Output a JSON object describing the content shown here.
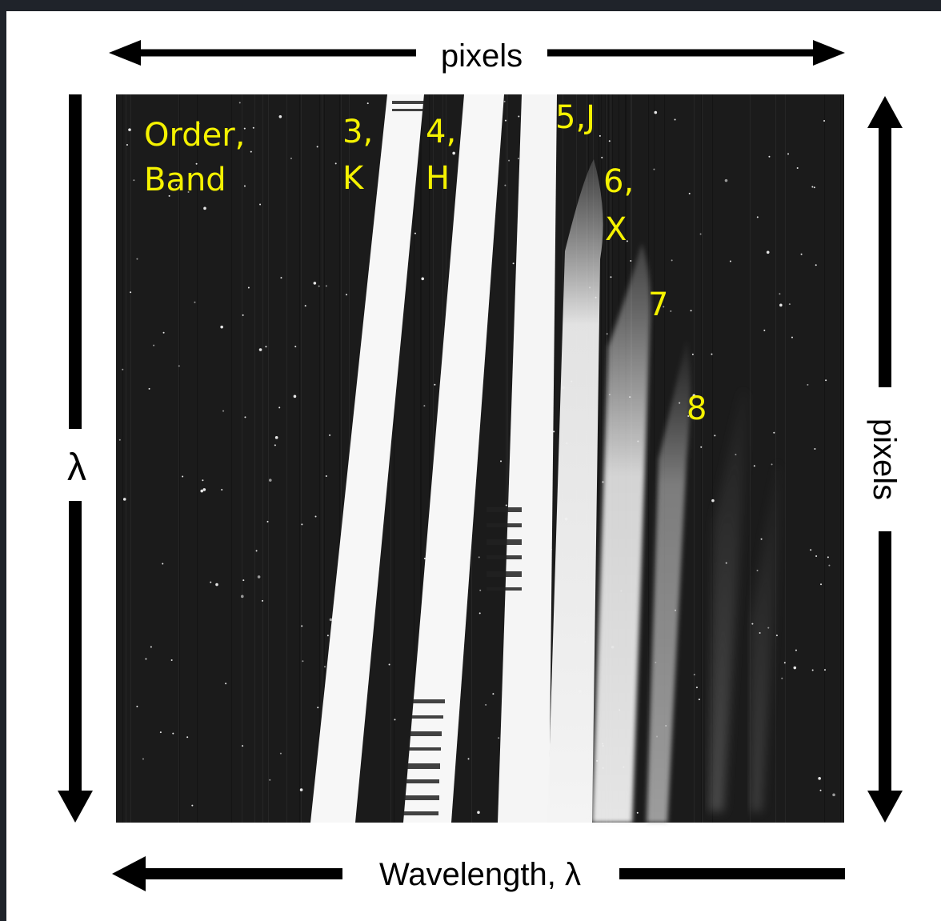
{
  "top_label": "pixels",
  "right_label": "pixels",
  "left_label": "λ",
  "bottom_label": "Wavelength, λ",
  "legend": {
    "line1": "Order,",
    "line2": "Band"
  },
  "orders": [
    {
      "line1": "3,",
      "line2": "K"
    },
    {
      "line1": "4,",
      "line2": "H"
    },
    {
      "line1": "5,J",
      "line2": ""
    },
    {
      "line1": "6,",
      "line2": "X"
    },
    {
      "line1": "7",
      "line2": ""
    },
    {
      "line1": "8",
      "line2": ""
    }
  ],
  "colors": {
    "label_yellow": "#f5f200",
    "frame_background": "#1f232a",
    "arrow": "#000000"
  }
}
